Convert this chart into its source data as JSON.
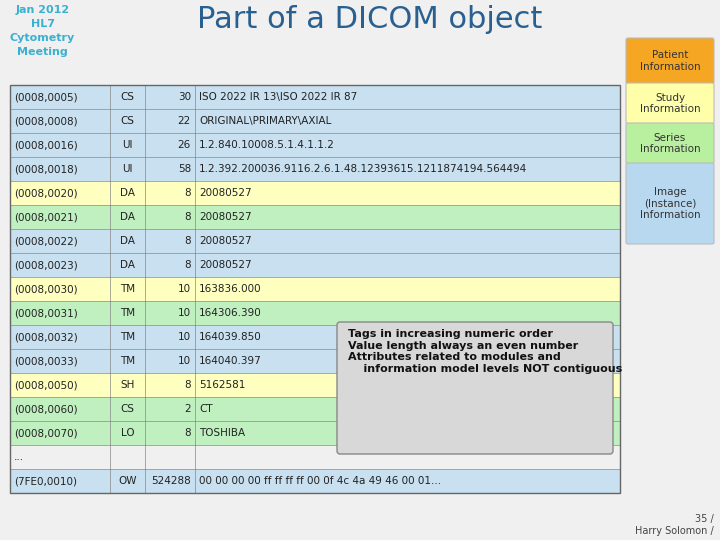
{
  "title": "Part of a DICOM object",
  "top_left_lines": [
    "Jan 2012",
    "HL7",
    "Cytometry",
    "Meeting"
  ],
  "top_left_color": "#3bb0d0",
  "background_color": "#f0f0f0",
  "table_rows": [
    {
      "tag": "(0008,0005)",
      "vr": "CS",
      "len": "30",
      "value": "ISO 2022 IR 13\\ISO 2022 IR 87",
      "row_color": "#c8e0f0"
    },
    {
      "tag": "(0008,0008)",
      "vr": "CS",
      "len": "22",
      "value": "ORIGINAL\\PRIMARY\\AXIAL",
      "row_color": "#c8e0f0"
    },
    {
      "tag": "(0008,0016)",
      "vr": "UI",
      "len": "26",
      "value": "1.2.840.10008.5.1.4.1.1.2",
      "row_color": "#c8e0f0"
    },
    {
      "tag": "(0008,0018)",
      "vr": "UI",
      "len": "58",
      "value": "1.2.392.200036.9116.2.6.1.48.12393615.1211874194.564494",
      "row_color": "#c8e0f0"
    },
    {
      "tag": "(0008,0020)",
      "vr": "DA",
      "len": "8",
      "value": "20080527",
      "row_color": "#ffffc0"
    },
    {
      "tag": "(0008,0021)",
      "vr": "DA",
      "len": "8",
      "value": "20080527",
      "row_color": "#c0f0c0"
    },
    {
      "tag": "(0008,0022)",
      "vr": "DA",
      "len": "8",
      "value": "20080527",
      "row_color": "#c8e0f0"
    },
    {
      "tag": "(0008,0023)",
      "vr": "DA",
      "len": "8",
      "value": "20080527",
      "row_color": "#c8e0f0"
    },
    {
      "tag": "(0008,0030)",
      "vr": "TM",
      "len": "10",
      "value": "163836.000",
      "row_color": "#ffffc0"
    },
    {
      "tag": "(0008,0031)",
      "vr": "TM",
      "len": "10",
      "value": "164306.390",
      "row_color": "#c0f0c0"
    },
    {
      "tag": "(0008,0032)",
      "vr": "TM",
      "len": "10",
      "value": "164039.850",
      "row_color": "#c8e0f0"
    },
    {
      "tag": "(0008,0033)",
      "vr": "TM",
      "len": "10",
      "value": "164040.397",
      "row_color": "#c8e0f0"
    },
    {
      "tag": "(0008,0050)",
      "vr": "SH",
      "len": "8",
      "value": "5162581",
      "row_color": "#ffffc0"
    },
    {
      "tag": "(0008,0060)",
      "vr": "CS",
      "len": "2",
      "value": "CT",
      "row_color": "#c0f0c0"
    },
    {
      "tag": "(0008,0070)",
      "vr": "LO",
      "len": "8",
      "value": "TOSHIBA",
      "row_color": "#c0f0c0"
    },
    {
      "tag": "...",
      "vr": "",
      "len": "",
      "value": "",
      "row_color": "#f0f0f0"
    },
    {
      "tag": "(7FE0,0010)",
      "vr": "OW",
      "len": "524288",
      "value": "00 00 00 00 ff ff ff ff 00 0f 4c 4a 49 46 00 01...",
      "row_color": "#c8e0f0"
    }
  ],
  "sidebar_boxes": [
    {
      "label": "Patient\nInformation",
      "color": "#f5a623"
    },
    {
      "label": "Study\nInformation",
      "color": "#ffffaa"
    },
    {
      "label": "Series\nInformation",
      "color": "#b8f0a0"
    },
    {
      "label": "Image\n(Instance)\nInformation",
      "color": "#b8d8f0"
    }
  ],
  "callout_text": "Tags in increasing numeric order\nValue length always an even number\nAttributes related to modules and\n    information model levels NOT contiguous",
  "callout_color": "#d8d8d8",
  "callout_border": "#888888",
  "footer_text": "35 /\nHarry Solomon /",
  "table_border_color": "#888888",
  "title_color": "#2a6090",
  "text_color": "#333333"
}
